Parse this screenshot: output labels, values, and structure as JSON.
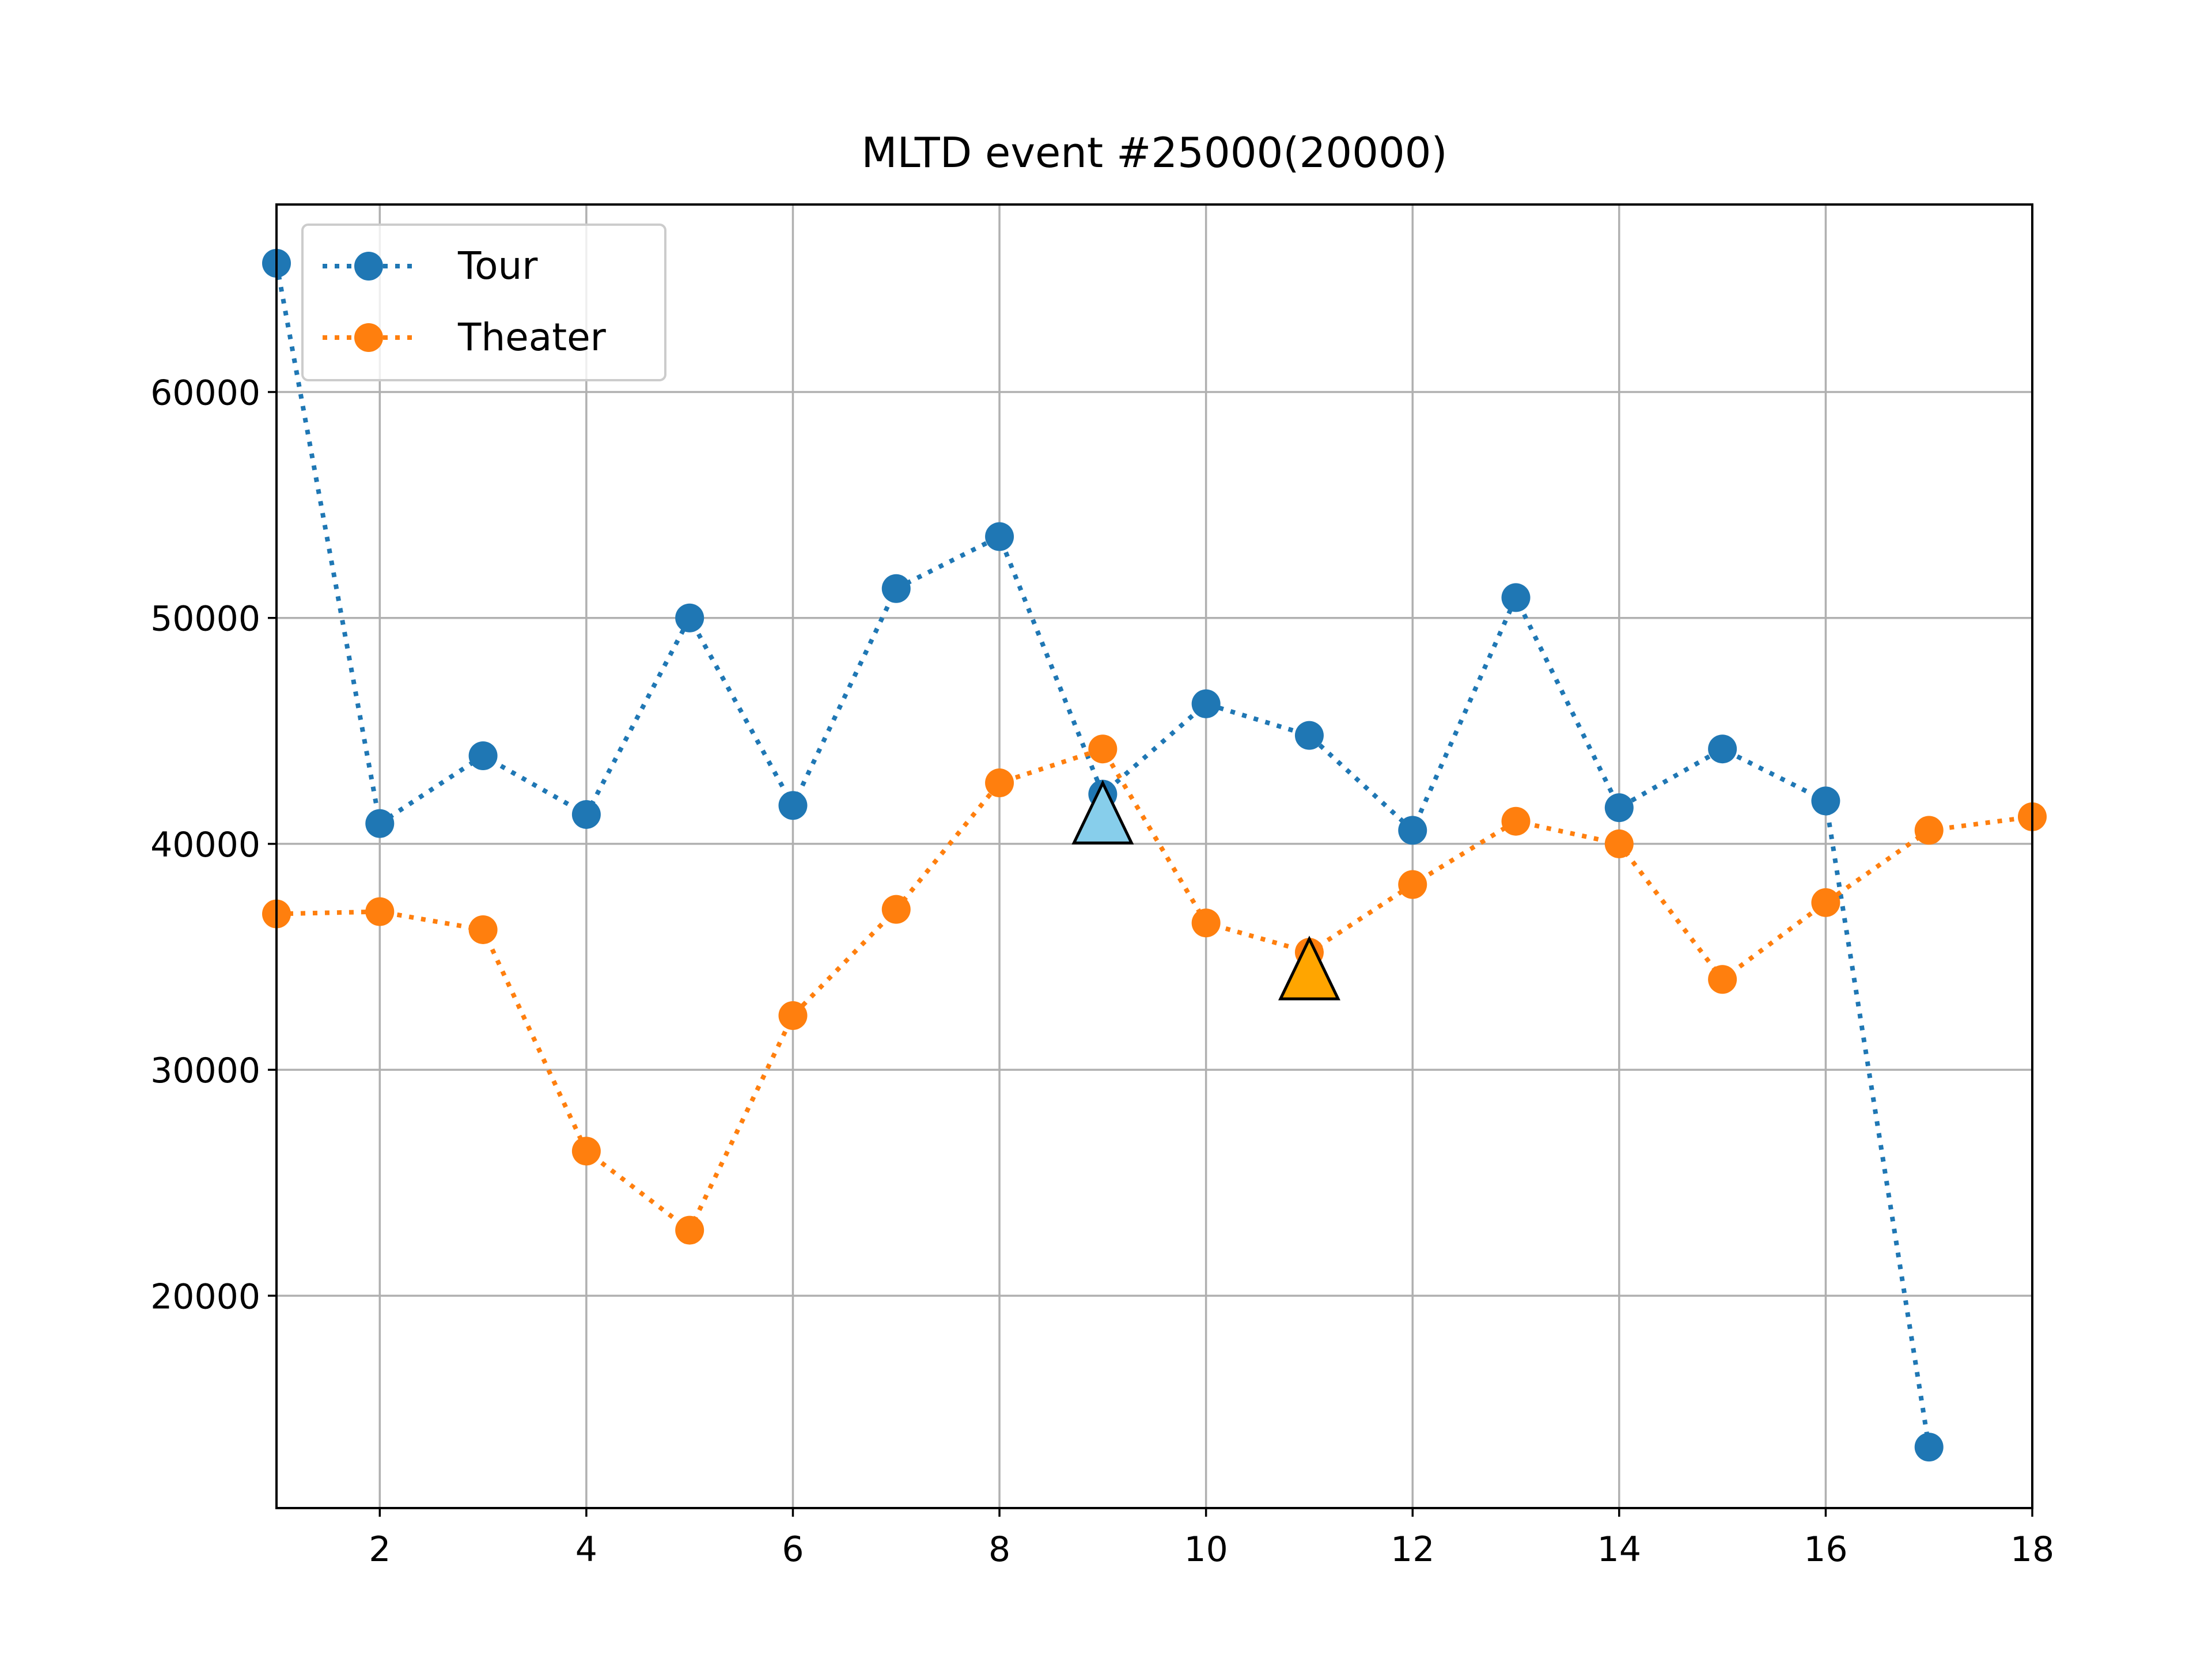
{
  "chart_data": {
    "type": "line",
    "title": "MLTD event #25000(20000)",
    "xlabel": "",
    "ylabel": "",
    "xlim": [
      1,
      18
    ],
    "ylim": [
      10600,
      68300
    ],
    "xticks": [
      2,
      4,
      6,
      8,
      10,
      12,
      14,
      16,
      18
    ],
    "yticks": [
      20000,
      30000,
      40000,
      50000,
      60000
    ],
    "grid": true,
    "legend_position": "top-left",
    "series": [
      {
        "name": "Tour",
        "color": "#1f77b4",
        "line_style": "dotted",
        "marker": "circle",
        "x": [
          1,
          2,
          3,
          4,
          5,
          6,
          7,
          8,
          9,
          10,
          11,
          12,
          13,
          14,
          15,
          16,
          17
        ],
        "values": [
          65700,
          40900,
          43900,
          41300,
          50000,
          41700,
          51300,
          53600,
          42200,
          46200,
          44800,
          40600,
          50900,
          41600,
          44200,
          41900,
          13300
        ]
      },
      {
        "name": "Theater",
        "color": "#ff7f0e",
        "line_style": "dotted",
        "marker": "circle",
        "x": [
          1,
          2,
          3,
          4,
          5,
          6,
          7,
          8,
          9,
          10,
          11,
          12,
          13,
          14,
          15,
          16,
          17,
          18
        ],
        "values": [
          36900,
          37000,
          36200,
          26400,
          22900,
          32400,
          37100,
          42700,
          44200,
          36500,
          35200,
          38200,
          41000,
          40000,
          34000,
          37400,
          40600,
          41200
        ]
      }
    ],
    "annotations": [
      {
        "type": "triangle-marker",
        "x": 9,
        "y": 41100,
        "color": "#87ceeb"
      },
      {
        "type": "triangle-marker",
        "x": 11,
        "y": 34200,
        "color": "#ffa500"
      }
    ]
  }
}
